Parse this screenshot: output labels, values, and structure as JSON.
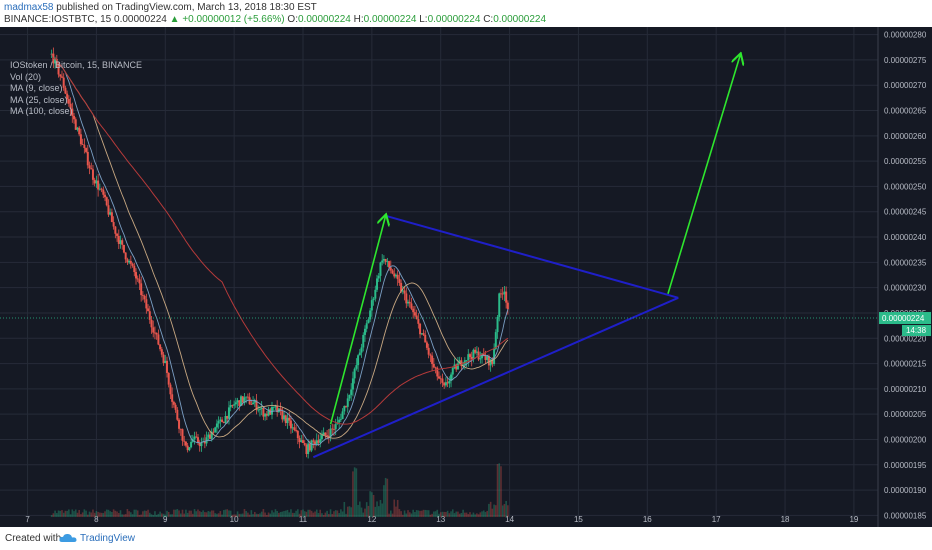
{
  "header": {
    "author": "madmax58",
    "published": "published on TradingView.com, March 13, 2018 18:30 EST",
    "symbol": "BINANCE:IOSTBTC, 15",
    "last": "0.00000224",
    "change": "▲ +0.00000012 (+5.66%)",
    "o_label": "O:",
    "o": "0.00000224",
    "h_label": "H:",
    "h": "0.00000224",
    "l_label": "L:",
    "l": "0.00000224",
    "c_label": "C:",
    "c": "0.00000224"
  },
  "legend": {
    "title": "IOStoken / Bitcoin, 15, BINANCE",
    "vol": "Vol (20)",
    "ma9": "MA (9, close)",
    "ma25": "MA (25, close)",
    "ma100": "MA (100, close)"
  },
  "footer": {
    "created": "Created with",
    "brand": "TradingView",
    "logo_icon": "tradingview-cloud-icon"
  },
  "colors": {
    "bg": "#151924",
    "up": "#2bbb8a",
    "down": "#e8564d",
    "ma9": "#7b9fc4",
    "ma25": "#c8a882",
    "ma100": "#b53a3a",
    "drawing_blue": "#1f1fc9",
    "drawing_green": "#2ee62e",
    "grid": "#262b38"
  },
  "chart_data": {
    "type": "candlestick",
    "y_ticks": [
      "0.00000280",
      "0.00000275",
      "0.00000270",
      "0.00000265",
      "0.00000260",
      "0.00000255",
      "0.00000250",
      "0.00000245",
      "0.00000240",
      "0.00000235",
      "0.00000230",
      "0.00000225",
      "0.00000220",
      "0.00000215",
      "0.00000210",
      "0.00000205",
      "0.00000200",
      "0.00000195",
      "0.00000190",
      "0.00000185"
    ],
    "x_ticks": [
      "7",
      "8",
      "9",
      "10",
      "11",
      "12",
      "13",
      "14",
      "15",
      "16",
      "17",
      "18",
      "19"
    ],
    "ylim": [
      1.835e-06,
      2.815e-06
    ],
    "xlim": [
      6.6,
      19.35
    ],
    "current_price_label": "0.00000224",
    "countdown_label": "14:38",
    "price_path": [
      [
        7.35,
        2.76
      ],
      [
        7.5,
        2.71
      ],
      [
        7.65,
        2.64
      ],
      [
        7.8,
        2.58
      ],
      [
        7.95,
        2.52
      ],
      [
        8.1,
        2.48
      ],
      [
        8.25,
        2.42
      ],
      [
        8.4,
        2.37
      ],
      [
        8.55,
        2.33
      ],
      [
        8.7,
        2.27
      ],
      [
        8.85,
        2.21
      ],
      [
        9.0,
        2.15
      ],
      [
        9.1,
        2.08
      ],
      [
        9.2,
        2.03
      ],
      [
        9.3,
        1.98
      ],
      [
        9.4,
        2.0
      ],
      [
        9.55,
        1.99
      ],
      [
        9.7,
        2.02
      ],
      [
        9.85,
        2.04
      ],
      [
        10.0,
        2.07
      ],
      [
        10.15,
        2.08
      ],
      [
        10.3,
        2.07
      ],
      [
        10.45,
        2.05
      ],
      [
        10.6,
        2.06
      ],
      [
        10.75,
        2.04
      ],
      [
        10.9,
        2.01
      ],
      [
        11.05,
        1.98
      ],
      [
        11.2,
        2.0
      ],
      [
        11.35,
        2.01
      ],
      [
        11.5,
        2.03
      ],
      [
        11.65,
        2.08
      ],
      [
        11.8,
        2.16
      ],
      [
        11.95,
        2.24
      ],
      [
        12.05,
        2.3
      ],
      [
        12.15,
        2.36
      ],
      [
        12.3,
        2.33
      ],
      [
        12.45,
        2.29
      ],
      [
        12.6,
        2.25
      ],
      [
        12.75,
        2.2
      ],
      [
        12.9,
        2.14
      ],
      [
        13.05,
        2.1
      ],
      [
        13.2,
        2.14
      ],
      [
        13.35,
        2.16
      ],
      [
        13.5,
        2.17
      ],
      [
        13.65,
        2.16
      ],
      [
        13.75,
        2.15
      ],
      [
        13.85,
        2.28
      ],
      [
        13.92,
        2.3
      ],
      [
        14.0,
        2.24
      ]
    ],
    "volume_spikes": [
      [
        11.75,
        0.35
      ],
      [
        12.2,
        0.28
      ],
      [
        13.85,
        0.4
      ],
      [
        12.0,
        0.18
      ]
    ],
    "drawings": [
      {
        "type": "line",
        "color": "blue",
        "points": [
          [
            11.15,
            1.965
          ],
          [
            16.45,
            2.28
          ]
        ]
      },
      {
        "type": "line",
        "color": "blue",
        "points": [
          [
            12.2,
            2.442
          ],
          [
            16.45,
            2.28
          ]
        ]
      },
      {
        "type": "arrow",
        "color": "green",
        "points": [
          [
            11.4,
            2.03
          ],
          [
            12.2,
            2.442
          ]
        ]
      },
      {
        "type": "arrow",
        "color": "green",
        "points": [
          [
            16.3,
            2.288
          ],
          [
            17.35,
            2.76
          ]
        ]
      }
    ]
  }
}
